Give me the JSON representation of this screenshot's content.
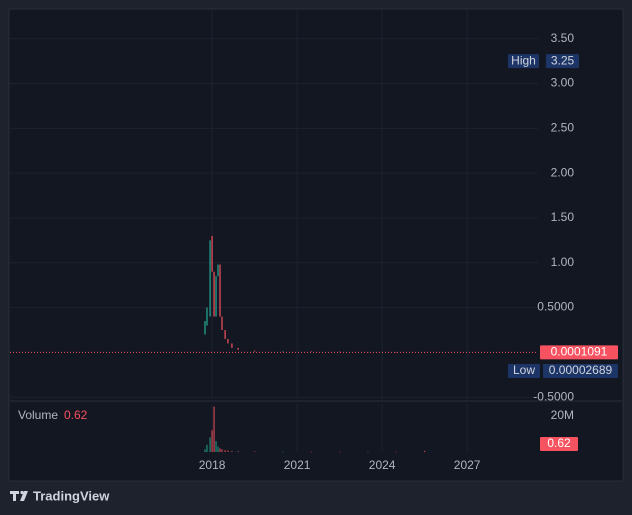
{
  "chart_data": {
    "type": "candlestick",
    "x": [
      2017.75,
      2017.82,
      2017.93,
      2018.0,
      2018.07,
      2018.14,
      2018.21,
      2018.28,
      2018.35,
      2018.46,
      2018.56,
      2018.7,
      2018.92,
      2019.5,
      2020.5,
      2021.5,
      2022.5,
      2023.5,
      2024.5,
      2025.5
    ],
    "open": [
      0.2,
      0.3,
      0.4,
      1.3,
      0.9,
      0.4,
      0.85,
      0.98,
      0.4,
      0.25,
      0.15,
      0.1,
      0.05,
      0.02,
      0.01,
      0.012,
      0.008,
      0.005,
      0.003,
      0.001
    ],
    "high": 3.25,
    "low": 2.689e-05,
    "close": [
      0.35,
      0.5,
      1.25,
      0.9,
      0.4,
      0.85,
      0.98,
      0.4,
      0.25,
      0.15,
      0.1,
      0.05,
      0.03,
      0.01,
      0.012,
      0.008,
      0.005,
      0.003,
      0.001,
      0.0001091
    ],
    "up_color": "#22ab94",
    "down_color": "#f7525f",
    "xlim": [
      2010.87,
      2029.5
    ],
    "xticks": [
      2018,
      2021,
      2024,
      2027
    ],
    "ylim": [
      -0.52,
      3.82
    ],
    "yticks": [
      {
        "value": 3.5,
        "label": "3.50"
      },
      {
        "value": 3.0,
        "label": "3.00"
      },
      {
        "value": 2.5,
        "label": "2.50"
      },
      {
        "value": 2.0,
        "label": "2.00"
      },
      {
        "value": 1.5,
        "label": "1.50"
      },
      {
        "value": 1.0,
        "label": "1.00"
      },
      {
        "value": 0.5,
        "label": "0.5000"
      },
      {
        "value": -0.5,
        "label": "-0.5000"
      }
    ],
    "grid": true,
    "high_label": "High",
    "low_label": "Low",
    "last": 0.0001091,
    "volume": {
      "title": "Volume",
      "last": 0.62,
      "values": [
        1.5,
        4,
        8,
        12,
        25,
        6,
        3,
        2,
        1.5,
        1,
        0.8,
        0.5,
        0.4,
        0.3,
        0.2,
        0.2,
        0.2,
        0.1,
        0.1,
        0.62
      ],
      "ylim": [
        0,
        27
      ],
      "yticks": [
        {
          "value": 20,
          "label": "20M"
        }
      ]
    }
  },
  "brand": "TradingView"
}
